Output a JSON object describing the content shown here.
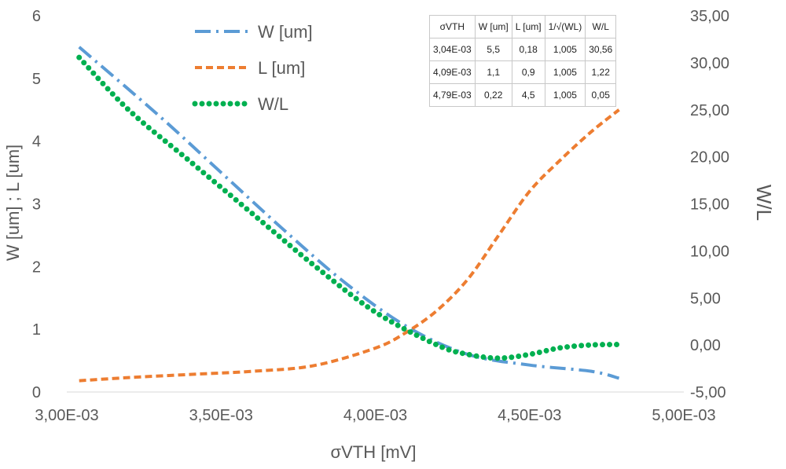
{
  "chart_data": {
    "type": "line",
    "xlabel": "σVTH  [mV]",
    "ylabel": "W [um] ; L [um]",
    "y2label": "W/L",
    "xlim": [
      0.003,
      0.005
    ],
    "ylim": [
      0,
      6
    ],
    "y2lim": [
      -5,
      35
    ],
    "xticks": [
      "3,00E-03",
      "3,50E-03",
      "4,00E-03",
      "4,50E-03",
      "5,00E-03"
    ],
    "xtick_values": [
      0.003,
      0.0035,
      0.004,
      0.0045,
      0.005
    ],
    "yticks": [
      "0",
      "1",
      "2",
      "3",
      "4",
      "5",
      "6"
    ],
    "ytick_values": [
      0,
      1,
      2,
      3,
      4,
      5,
      6
    ],
    "y2ticks": [
      "-5,00",
      "0,00",
      "5,00",
      "10,00",
      "15,00",
      "20,00",
      "25,00",
      "30,00",
      "35,00"
    ],
    "y2tick_values": [
      -5,
      0,
      5,
      10,
      15,
      20,
      25,
      30,
      35
    ],
    "grid": false,
    "legend_position": "top-left",
    "series": [
      {
        "name": "W [um]",
        "axis": "left",
        "color": "#5B9BD5",
        "style": "dash-dot",
        "points": [
          [
            0.00304,
            5.5
          ],
          [
            0.0033,
            4.4
          ],
          [
            0.0035,
            3.5
          ],
          [
            0.0037,
            2.6
          ],
          [
            0.0039,
            1.75
          ],
          [
            0.0041,
            1.05
          ],
          [
            0.0043,
            0.6
          ],
          [
            0.0045,
            0.43
          ],
          [
            0.0047,
            0.33
          ],
          [
            0.00479,
            0.22
          ]
        ]
      },
      {
        "name": "L [um]",
        "axis": "left",
        "color": "#ED7D31",
        "style": "dashed",
        "points": [
          [
            0.00304,
            0.18
          ],
          [
            0.0032,
            0.23
          ],
          [
            0.0034,
            0.28
          ],
          [
            0.0036,
            0.33
          ],
          [
            0.0038,
            0.42
          ],
          [
            0.004,
            0.7
          ],
          [
            0.0041,
            0.95
          ],
          [
            0.0042,
            1.3
          ],
          [
            0.0043,
            1.8
          ],
          [
            0.0044,
            2.5
          ],
          [
            0.0045,
            3.2
          ],
          [
            0.0046,
            3.7
          ],
          [
            0.0047,
            4.15
          ],
          [
            0.00479,
            4.5
          ]
        ]
      },
      {
        "name": "W/L",
        "axis": "right",
        "color": "#00B050",
        "style": "dotted",
        "points": [
          [
            0.00304,
            30.56
          ],
          [
            0.0032,
            25.0
          ],
          [
            0.0034,
            19.5
          ],
          [
            0.0036,
            14.0
          ],
          [
            0.0038,
            8.5
          ],
          [
            0.004,
            3.5
          ],
          [
            0.0042,
            0.0
          ],
          [
            0.0043,
            -1.0
          ],
          [
            0.0044,
            -1.4
          ],
          [
            0.0045,
            -1.0
          ],
          [
            0.0046,
            -0.3
          ],
          [
            0.0047,
            0.0
          ],
          [
            0.00479,
            0.05
          ]
        ]
      }
    ],
    "table": {
      "headers": [
        "σVTH",
        "W [um]",
        "L [um]",
        "1/√(WL)",
        "W/L"
      ],
      "rows": [
        [
          "3,04E-03",
          "5,5",
          "0,18",
          "1,005",
          "30,56"
        ],
        [
          "4,09E-03",
          "1,1",
          "0,9",
          "1,005",
          "1,22"
        ],
        [
          "4,79E-03",
          "0,22",
          "4,5",
          "1,005",
          "0,05"
        ]
      ]
    }
  }
}
